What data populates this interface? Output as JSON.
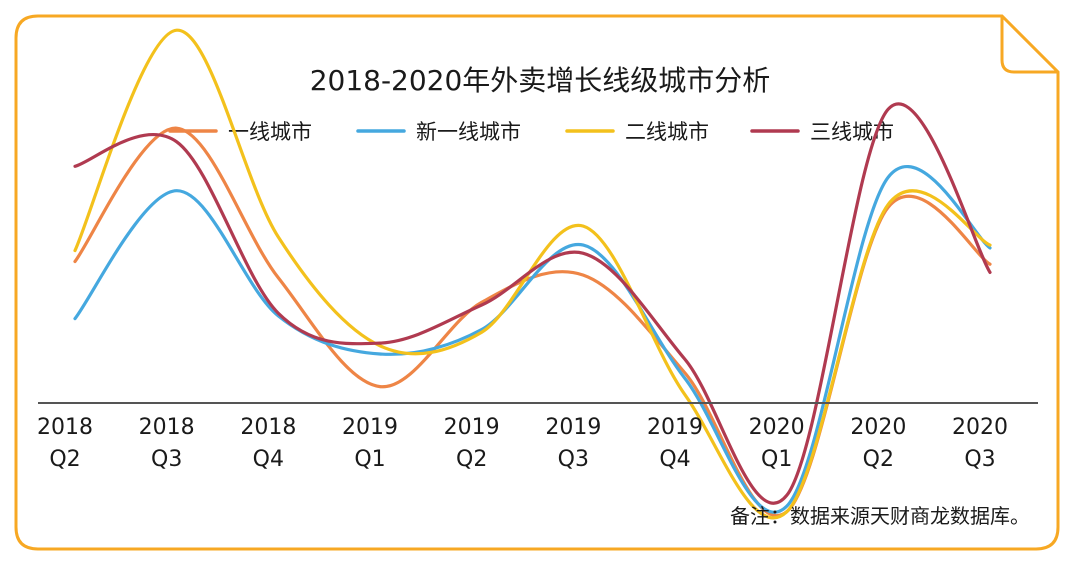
{
  "chart_data": {
    "type": "line",
    "title": "2018-2020年外卖增长线级城市分析",
    "note": "备注：数据来源天财商龙数据库。",
    "categories": [
      {
        "year": "2018",
        "quarter": "Q2"
      },
      {
        "year": "2018",
        "quarter": "Q3"
      },
      {
        "year": "2018",
        "quarter": "Q4"
      },
      {
        "year": "2019",
        "quarter": "Q1"
      },
      {
        "year": "2019",
        "quarter": "Q2"
      },
      {
        "year": "2019",
        "quarter": "Q3"
      },
      {
        "year": "2019",
        "quarter": "Q4"
      },
      {
        "year": "2020",
        "quarter": "Q1"
      },
      {
        "year": "2020",
        "quarter": "Q2"
      },
      {
        "year": "2020",
        "quarter": "Q3"
      }
    ],
    "ylim": [
      -36,
      100
    ],
    "axis_visible": false,
    "grid": false,
    "legend_position": "top",
    "smooth": true,
    "series": [
      {
        "name": "一线城市",
        "color": "#EE8546",
        "values": [
          48,
          97,
          42,
          2,
          33,
          43,
          7,
          -44,
          68,
          47
        ]
      },
      {
        "name": "新一线城市",
        "color": "#45A8DF",
        "values": [
          27,
          74,
          28,
          14,
          23,
          54,
          5,
          -42,
          79,
          53
        ]
      },
      {
        "name": "二线城市",
        "color": "#F3C11C",
        "values": [
          52,
          133,
          57,
          17,
          22,
          61,
          -1,
          -44,
          69,
          54
        ]
      },
      {
        "name": "三线城市",
        "color": "#B03A50",
        "values": [
          83,
          92,
          29,
          18,
          32,
          51,
          12,
          -38,
          104,
          44
        ]
      }
    ]
  },
  "colors": {
    "frame_border": "#F7A823",
    "baseline": "#555555"
  }
}
